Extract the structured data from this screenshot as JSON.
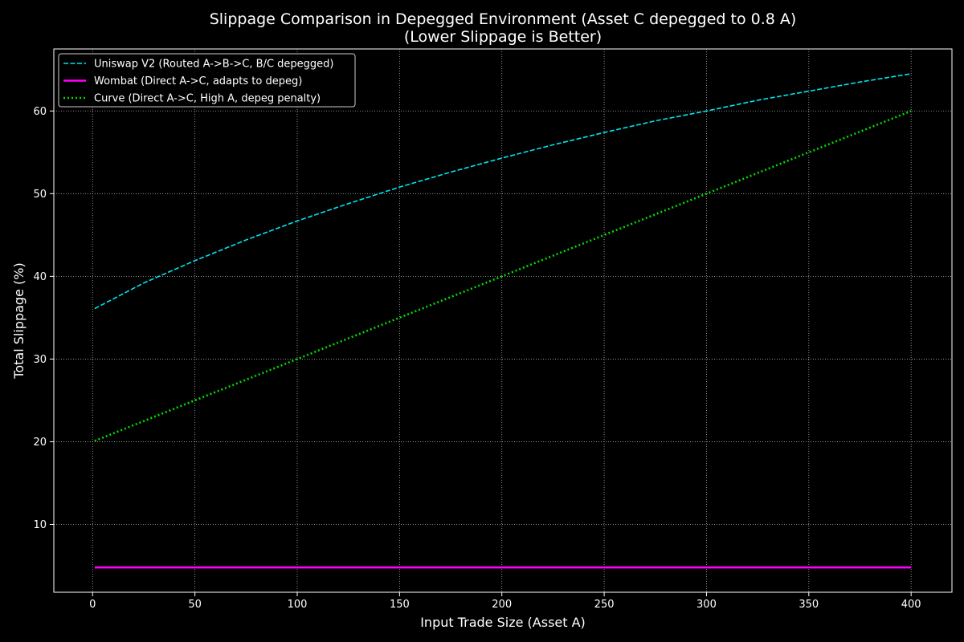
{
  "chart_data": {
    "type": "line",
    "title": "Slippage Comparison in Depegged Environment (Asset C depegged to 0.8 A)",
    "subtitle": "(Lower Slippage is Better)",
    "xlabel": "Input Trade Size (Asset A)",
    "ylabel": "Total Slippage (%)",
    "xlim": [
      -18.95,
      419.95
    ],
    "ylim": [
      1.8,
      67.5
    ],
    "x_ticks": [
      0,
      50,
      100,
      150,
      200,
      250,
      300,
      350,
      400
    ],
    "y_ticks": [
      10,
      20,
      30,
      40,
      50,
      60
    ],
    "grid": true,
    "legend_position": "top-left",
    "background_color": "#000000",
    "series": [
      {
        "name": "Uniswap V2 (Routed A->B->C, B/C depegged)",
        "color": "#00e5ee",
        "line_style": "dashed",
        "x": [
          1,
          25,
          50,
          75,
          100,
          125,
          150,
          175,
          200,
          225,
          250,
          275,
          300,
          325,
          350,
          375,
          400
        ],
        "values": [
          36.1,
          39.2,
          41.9,
          44.4,
          46.7,
          48.8,
          50.8,
          52.6,
          54.3,
          55.9,
          57.4,
          58.8,
          60.0,
          61.3,
          62.4,
          63.5,
          64.5
        ]
      },
      {
        "name": "Wombat (Direct A->C, adapts to depeg)",
        "color": "#ff00ff",
        "line_style": "solid",
        "x": [
          1,
          400
        ],
        "values": [
          4.8,
          4.8
        ]
      },
      {
        "name": "Curve (Direct A->C, High A, depeg penalty)",
        "color": "#00dd00",
        "line_style": "dotted",
        "x": [
          1,
          50,
          100,
          150,
          200,
          250,
          300,
          350,
          400
        ],
        "values": [
          20.1,
          25.0,
          30.0,
          35.0,
          40.0,
          45.0,
          50.0,
          55.0,
          60.0
        ]
      }
    ]
  }
}
